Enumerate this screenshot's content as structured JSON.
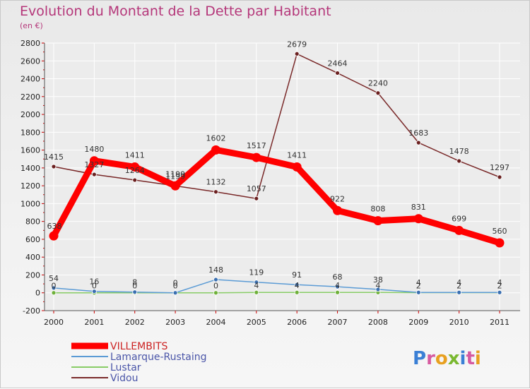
{
  "title": "Evolution du Montant de la Dette par Habitant",
  "subtitle": "(en €)",
  "logo": "Proxiti",
  "chart_data": {
    "type": "line",
    "categories": [
      "2000",
      "2001",
      "2002",
      "2003",
      "2004",
      "2005",
      "2006",
      "2007",
      "2008",
      "2009",
      "2010",
      "2011"
    ],
    "ylim": [
      -200,
      2800
    ],
    "yticks": [
      -200,
      0,
      200,
      400,
      600,
      800,
      1000,
      1200,
      1400,
      1600,
      1800,
      2000,
      2200,
      2400,
      2600,
      2800
    ],
    "grid": true,
    "legend": "bottom-left",
    "series": [
      {
        "name": "VILLEMBITS",
        "color": "#ff0000",
        "values": [
          638,
          1480,
          1411,
          1199,
          1602,
          1517,
          1411,
          922,
          808,
          831,
          699,
          560
        ]
      },
      {
        "name": "Lamarque-Rustaing",
        "color": "#5b9bd5",
        "values": [
          54,
          16,
          8,
          0,
          148,
          119,
          91,
          68,
          38,
          4,
          4,
          4
        ]
      },
      {
        "name": "Lustar",
        "color": "#88cc66",
        "values": [
          0,
          0,
          0,
          0,
          0,
          4,
          4,
          4,
          4,
          2,
          2,
          2
        ]
      },
      {
        "name": "Vidou",
        "color": "#7a2a2a",
        "values": [
          1415,
          1327,
          1264,
          1199,
          1132,
          1057,
          2679,
          2464,
          2240,
          1683,
          1478,
          1297
        ]
      }
    ]
  }
}
